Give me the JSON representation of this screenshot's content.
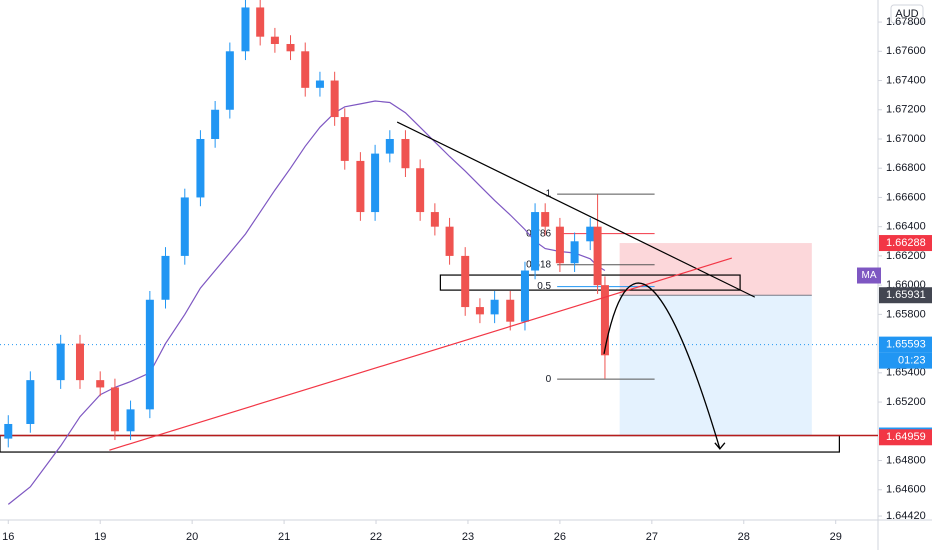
{
  "chart_data": {
    "type": "candlestick",
    "currency": "AUD",
    "x": [
      0,
      0.24,
      0.57,
      0.78,
      1,
      1.16,
      1.33,
      1.54,
      1.71,
      1.92,
      2.09,
      2.25,
      2.41,
      2.58,
      2.74,
      2.9,
      3.07,
      3.23,
      3.39,
      3.55,
      3.66,
      3.83,
      3.99,
      4.15,
      4.32,
      4.48,
      4.64,
      4.8,
      4.97,
      5.13,
      5.29,
      5.46,
      5.62,
      5.73,
      5.84,
      6,
      6.16,
      6.33,
      6.41,
      6.49
    ],
    "open": [
      1.6495,
      1.6505,
      1.6535,
      1.656,
      1.6535,
      1.653,
      1.65,
      1.6515,
      1.659,
      1.662,
      1.666,
      1.67,
      1.672,
      1.676,
      1.679,
      1.677,
      1.6765,
      1.676,
      1.6735,
      1.674,
      1.6715,
      1.6685,
      1.665,
      1.669,
      1.67,
      1.668,
      1.665,
      1.664,
      1.662,
      1.6585,
      1.658,
      1.659,
      1.6575,
      1.661,
      1.665,
      1.664,
      1.6615,
      1.663,
      1.664,
      1.66
    ],
    "high": [
      1.6511,
      1.6541,
      1.6566,
      1.6566,
      1.6541,
      1.6536,
      1.6521,
      1.6596,
      1.6626,
      1.6666,
      1.6706,
      1.6726,
      1.6766,
      1.6796,
      1.6796,
      1.6776,
      1.6771,
      1.6766,
      1.6746,
      1.6746,
      1.6721,
      1.6691,
      1.6696,
      1.6706,
      1.6706,
      1.6686,
      1.6656,
      1.6646,
      1.6626,
      1.6591,
      1.6596,
      1.6596,
      1.6616,
      1.6656,
      1.6656,
      1.6646,
      1.6636,
      1.6646,
      1.6662,
      1.6606
    ],
    "low": [
      1.6489,
      1.6499,
      1.6529,
      1.6529,
      1.6524,
      1.6494,
      1.6494,
      1.6509,
      1.6584,
      1.6614,
      1.6654,
      1.6694,
      1.6714,
      1.6754,
      1.6764,
      1.6759,
      1.6754,
      1.6729,
      1.6729,
      1.6709,
      1.6679,
      1.6644,
      1.6644,
      1.6684,
      1.6674,
      1.6644,
      1.6634,
      1.6614,
      1.6579,
      1.6574,
      1.6574,
      1.6569,
      1.6569,
      1.6604,
      1.6634,
      1.6609,
      1.6609,
      1.6624,
      1.6594,
      1.6536
    ],
    "close": [
      1.6505,
      1.6535,
      1.656,
      1.6535,
      1.653,
      1.65,
      1.6515,
      1.659,
      1.662,
      1.666,
      1.67,
      1.672,
      1.676,
      1.679,
      1.677,
      1.6765,
      1.676,
      1.6735,
      1.674,
      1.6715,
      1.6685,
      1.665,
      1.669,
      1.67,
      1.668,
      1.665,
      1.664,
      1.662,
      1.6585,
      1.658,
      1.659,
      1.6575,
      1.661,
      1.665,
      1.664,
      1.6615,
      1.663,
      1.664,
      1.66,
      1.6552
    ],
    "up_color": "#2196f3",
    "down_color": "#ef5350",
    "ma": {
      "name": "MA",
      "color": "#7e57c2",
      "values": [
        1.645,
        1.6462,
        1.649,
        1.651,
        1.6525,
        1.653,
        1.6534,
        1.654,
        1.656,
        1.658,
        1.6598,
        1.661,
        1.6622,
        1.6635,
        1.665,
        1.6665,
        1.668,
        1.6695,
        1.6708,
        1.6718,
        1.6722,
        1.6724,
        1.6726,
        1.6725,
        1.6718,
        1.6708,
        1.6698,
        1.6688,
        1.6678,
        1.6668,
        1.6658,
        1.6648,
        1.6638,
        1.663,
        1.6625,
        1.6623,
        1.6622,
        1.6618,
        1.6613,
        1.661
      ]
    },
    "xlim": [
      -0.09,
      9.46
    ],
    "ylim": [
      1.64393,
      1.67951
    ],
    "xticks": [
      {
        "value": 0,
        "label": "16"
      },
      {
        "value": 1,
        "label": "19"
      },
      {
        "value": 2,
        "label": "20"
      },
      {
        "value": 3,
        "label": "21"
      },
      {
        "value": 4,
        "label": "22"
      },
      {
        "value": 5,
        "label": "23"
      },
      {
        "value": 6,
        "label": "26"
      },
      {
        "value": 7,
        "label": "27"
      },
      {
        "value": 8,
        "label": "28"
      },
      {
        "value": 9,
        "label": "29"
      }
    ],
    "yticks": [
      {
        "value": 1.678,
        "label": "1.67800"
      },
      {
        "value": 1.676,
        "label": "1.67600"
      },
      {
        "value": 1.674,
        "label": "1.67400"
      },
      {
        "value": 1.672,
        "label": "1.67200"
      },
      {
        "value": 1.67,
        "label": "1.67000"
      },
      {
        "value": 1.668,
        "label": "1.66800"
      },
      {
        "value": 1.666,
        "label": "1.66600"
      },
      {
        "value": 1.664,
        "label": "1.66400"
      },
      {
        "value": 1.662,
        "label": "1.66200"
      },
      {
        "value": 1.66,
        "label": "1.66000"
      },
      {
        "value": 1.658,
        "label": "1.65800"
      },
      {
        "value": 1.654,
        "label": "1.65400"
      },
      {
        "value": 1.652,
        "label": "1.65200"
      },
      {
        "value": 1.648,
        "label": "1.64800"
      },
      {
        "value": 1.646,
        "label": "1.64600"
      },
      {
        "value": 1.6442,
        "label": "1.64420"
      }
    ],
    "trendlines": [
      {
        "color": "#000000",
        "x": [
          4.23,
          8.12
        ],
        "y": [
          1.67116,
          1.65918
        ]
      },
      {
        "color": "#f23645",
        "x": [
          1.1,
          7.87
        ],
        "y": [
          1.64871,
          1.66185
        ]
      }
    ],
    "hline": {
      "value": 1.64971,
      "color": "#b71c1c"
    },
    "zones": [
      {
        "x": [
          -0.09,
          9.04
        ],
        "y": [
          1.64971,
          1.64858
        ]
      },
      {
        "x": [
          4.7,
          7.96
        ],
        "y": [
          1.66069,
          1.65966
        ]
      }
    ],
    "position": {
      "x": [
        6.65,
        8.74
      ],
      "entry": 1.65931,
      "stop": 1.66288,
      "target": 1.64971
    },
    "fib": {
      "x": [
        5.97,
        7.03
      ],
      "p0": 1.65357,
      "p1": 1.66623,
      "levels": [
        1,
        0.786,
        0.618,
        0.5,
        0
      ],
      "colors": [
        "#555555",
        "#f23645",
        "#555555",
        "#2196f3",
        "#555555"
      ]
    },
    "arrow": {
      "x": [
        6.48,
        6.98,
        7.74
      ],
      "y": [
        1.6553,
        1.6598,
        1.6488
      ]
    },
    "price_tags": [
      {
        "value": 1.66288,
        "color": "#f23645"
      },
      {
        "value": 1.65931,
        "color": "#434651"
      },
      {
        "value": 1.65593,
        "color": "#2196f3"
      },
      {
        "value": 1.64971,
        "color": "#2196f3"
      },
      {
        "value": 1.64959,
        "color": "#f23645"
      }
    ],
    "countdown": "01:23"
  }
}
